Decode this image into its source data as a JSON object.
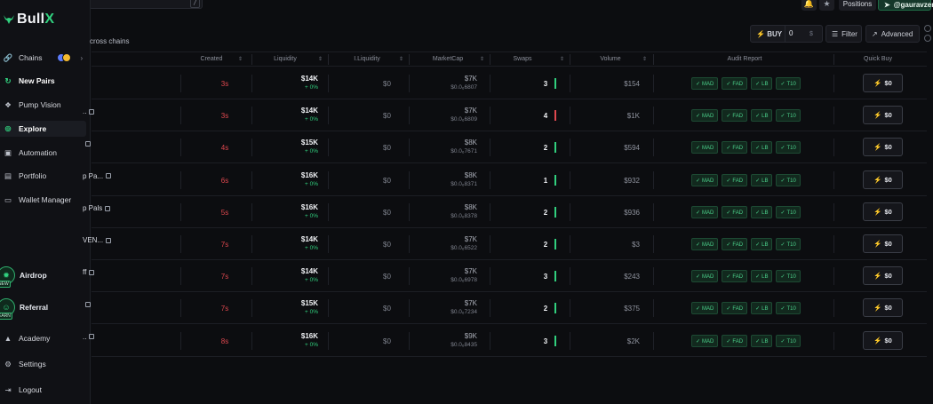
{
  "topbar": {
    "slash_key": "/",
    "positions_label": "Positions",
    "user_label": "@gauravzen"
  },
  "sidebar": {
    "logo_text": "Bull",
    "logo_x": "X",
    "items": [
      {
        "label": "Chains",
        "icon": "link-icon"
      },
      {
        "label": "New Pairs",
        "icon": "refresh-icon"
      },
      {
        "label": "Pump Vision",
        "icon": "pill-icon"
      },
      {
        "label": "Explore",
        "icon": "compass-icon"
      },
      {
        "label": "Automation",
        "icon": "automation-icon"
      },
      {
        "label": "Portfolio",
        "icon": "portfolio-icon"
      },
      {
        "label": "Wallet Manager",
        "icon": "wallet-icon"
      }
    ],
    "promos": [
      {
        "label": "Airdrop",
        "tag": "NEW"
      },
      {
        "label": "Referral",
        "tag": "EARN"
      }
    ],
    "bottom_items": [
      {
        "label": "Academy"
      },
      {
        "label": "Settings"
      },
      {
        "label": "Logout"
      }
    ]
  },
  "toolbar": {
    "across_text": "cross chains",
    "buy_label": "BUY",
    "buy_amount": "0",
    "buy_unit": "$",
    "filter_label": "Filter",
    "advanced_label": "Advanced"
  },
  "table": {
    "headers": {
      "created": "Created",
      "liquidity": "Liquidity",
      "iliquidity": "I.Liquidity",
      "marketcap": "MarketCap",
      "swaps": "Swaps",
      "volume": "Volume",
      "audit": "Audit Report",
      "quickbuy": "Quick Buy"
    },
    "audit_labels": [
      "MAD",
      "FAD",
      "LB",
      "T10"
    ],
    "quick_buy_label": "$0",
    "rows": [
      {
        "name": "",
        "sub": "",
        "copy": false,
        "created": "3s",
        "liq": "$14K",
        "liq_pct": "+ 0%",
        "iliq": "$0",
        "mcap": "$7K",
        "mcap_sub": "$0.0₆6807",
        "swaps": "3",
        "swap_trend": "green",
        "volume": "$154"
      },
      {
        "name": "..",
        "sub": "",
        "copy": true,
        "created": "3s",
        "liq": "$14K",
        "liq_pct": "+ 0%",
        "iliq": "$0",
        "mcap": "$7K",
        "mcap_sub": "$0.0₆6809",
        "swaps": "4",
        "swap_trend": "red",
        "volume": "$1K"
      },
      {
        "name": "",
        "sub": "",
        "copy": true,
        "created": "4s",
        "liq": "$15K",
        "liq_pct": "+ 0%",
        "iliq": "$0",
        "mcap": "$8K",
        "mcap_sub": "$0.0₆7671",
        "swaps": "2",
        "swap_trend": "green",
        "volume": "$594"
      },
      {
        "name": "p Pa...",
        "sub": "",
        "copy": true,
        "created": "6s",
        "liq": "$16K",
        "liq_pct": "+ 0%",
        "iliq": "$0",
        "mcap": "$8K",
        "mcap_sub": "$0.0₆8371",
        "swaps": "1",
        "swap_trend": "green",
        "volume": "$932"
      },
      {
        "name": "p Pals",
        "sub": "",
        "copy": true,
        "created": "5s",
        "liq": "$16K",
        "liq_pct": "+ 0%",
        "iliq": "$0",
        "mcap": "$8K",
        "mcap_sub": "$0.0₆8378",
        "swaps": "2",
        "swap_trend": "green",
        "volume": "$936"
      },
      {
        "name": "VEN...",
        "sub": "",
        "copy": true,
        "created": "7s",
        "liq": "$14K",
        "liq_pct": "+ 0%",
        "iliq": "$0",
        "mcap": "$7K",
        "mcap_sub": "$0.0₆6522",
        "swaps": "2",
        "swap_trend": "green",
        "volume": "$3"
      },
      {
        "name": "ff",
        "sub": "",
        "copy": true,
        "created": "7s",
        "liq": "$14K",
        "liq_pct": "+ 0%",
        "iliq": "$0",
        "mcap": "$7K",
        "mcap_sub": "$0.0₆6978",
        "swaps": "3",
        "swap_trend": "green",
        "volume": "$243"
      },
      {
        "name": "",
        "sub": "",
        "copy": true,
        "created": "7s",
        "liq": "$15K",
        "liq_pct": "+ 0%",
        "iliq": "$0",
        "mcap": "$7K",
        "mcap_sub": "$0.0₆7234",
        "swaps": "2",
        "swap_trend": "green",
        "volume": "$375"
      },
      {
        "name": "..",
        "sub": "",
        "copy": true,
        "created": "8s",
        "liq": "$16K",
        "liq_pct": "+ 0%",
        "iliq": "$0",
        "mcap": "$9K",
        "mcap_sub": "$0.0₆8435",
        "swaps": "3",
        "swap_trend": "green",
        "volume": "$2K"
      }
    ]
  }
}
